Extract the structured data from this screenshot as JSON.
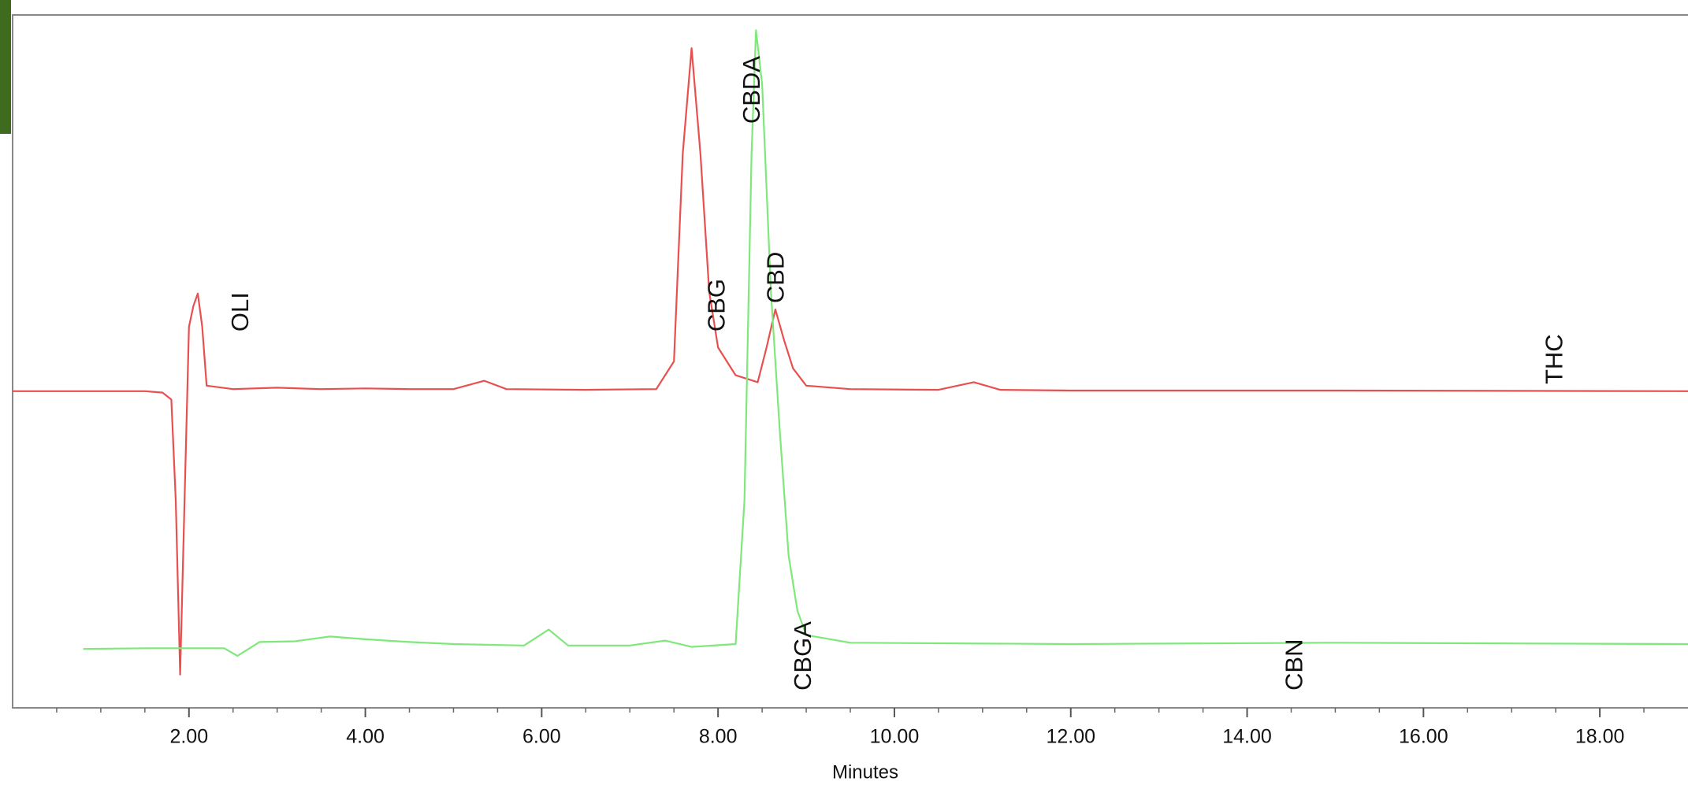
{
  "chart_data": {
    "type": "line",
    "x_label": "Minutes",
    "xlim": [
      0,
      19
    ],
    "ylim": [
      0,
      100
    ],
    "xticks": [
      {
        "value": 2,
        "label": "2.00"
      },
      {
        "value": 4,
        "label": "4.00"
      },
      {
        "value": 6,
        "label": "6.00"
      },
      {
        "value": 8,
        "label": "8.00"
      },
      {
        "value": 10,
        "label": "10.00"
      },
      {
        "value": 12,
        "label": "12.00"
      },
      {
        "value": 14,
        "label": "14.00"
      },
      {
        "value": 16,
        "label": "16.00"
      },
      {
        "value": 18,
        "label": "18.00"
      }
    ],
    "xminorticks": [
      0.5,
      1,
      1.5,
      2.5,
      3,
      3.5,
      4.5,
      5,
      5.5,
      6.5,
      7,
      7.5,
      8.5,
      9,
      9.5,
      10.5,
      11,
      11.5,
      12.5,
      13,
      13.5,
      14.5,
      15,
      15.5,
      16.5,
      17,
      17.5,
      18.5
    ],
    "series": [
      {
        "color": "#e8504f",
        "x": [
          0,
          1.5,
          1.7,
          1.8,
          1.85,
          1.9,
          1.95,
          2.0,
          2.05,
          2.1,
          2.15,
          2.2,
          2.5,
          3.0,
          3.5,
          4.0,
          4.5,
          5.0,
          5.35,
          5.6,
          6.5,
          7.3,
          7.5,
          7.6,
          7.7,
          7.8,
          7.9,
          8.0,
          8.2,
          8.45,
          8.55,
          8.65,
          8.75,
          8.85,
          9.0,
          9.5,
          10.5,
          10.9,
          11.2,
          12,
          15,
          19
        ],
        "values": [
          45.7,
          45.7,
          45.5,
          44.5,
          30,
          4.8,
          30,
          55,
          58,
          59.8,
          55,
          46.5,
          46.0,
          46.2,
          46.0,
          46.1,
          46.0,
          46.0,
          47.2,
          46.0,
          45.9,
          46.0,
          50,
          80,
          95.2,
          80,
          60,
          52,
          48,
          47,
          52,
          57.5,
          53,
          49,
          46.5,
          46.0,
          45.9,
          47.0,
          45.9,
          45.8,
          45.8,
          45.7
        ]
      },
      {
        "color": "#7ee87a",
        "x": [
          0.8,
          1.5,
          2.4,
          2.55,
          2.8,
          3.2,
          3.6,
          4.0,
          4.5,
          5.0,
          5.8,
          6.08,
          6.3,
          7.0,
          7.4,
          7.7,
          8.2,
          8.3,
          8.38,
          8.43,
          8.5,
          8.6,
          8.7,
          8.8,
          8.9,
          9.0,
          9.5,
          12,
          15,
          17,
          19
        ],
        "values": [
          8.5,
          8.6,
          8.6,
          7.5,
          9.5,
          9.6,
          10.3,
          9.9,
          9.5,
          9.2,
          9.0,
          11.3,
          9.0,
          9.0,
          9.7,
          8.8,
          9.2,
          30,
          80,
          97.8,
          90,
          60,
          40,
          22,
          14,
          10.5,
          9.4,
          9.2,
          9.4,
          9.3,
          9.2
        ]
      }
    ],
    "annotations": [
      {
        "text": "OLI",
        "x": 2.6,
        "y": 54.3
      },
      {
        "text": "CBG",
        "x": 8.0,
        "y": 54.3
      },
      {
        "text": "CBDA",
        "x": 8.4,
        "y": 84.3
      },
      {
        "text": "CBD",
        "x": 8.67,
        "y": 58.4
      },
      {
        "text": "THC",
        "x": 17.5,
        "y": 46.7
      },
      {
        "text": "CBGA",
        "x": 8.98,
        "y": 2.5
      },
      {
        "text": "CBN",
        "x": 14.55,
        "y": 2.5
      }
    ]
  }
}
